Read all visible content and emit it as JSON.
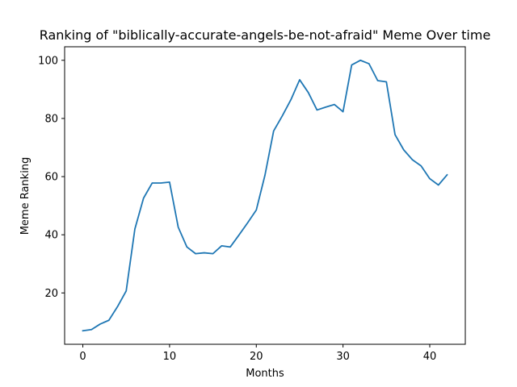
{
  "chart_data": {
    "type": "line",
    "title": "Ranking of \"biblically-accurate-angels-be-not-afraid\" Meme Over time",
    "xlabel": "Months",
    "ylabel": "Meme Ranking",
    "xlim": [
      -2.1,
      44.1
    ],
    "ylim": [
      2.35,
      104.65
    ],
    "xticks": [
      0,
      10,
      20,
      30,
      40
    ],
    "yticks": [
      20,
      40,
      60,
      80,
      100
    ],
    "grid": false,
    "color": "#1f77b4",
    "series": [
      {
        "x": [
          0,
          1,
          2,
          3,
          4,
          5,
          6,
          7,
          8,
          9,
          10,
          11,
          12,
          13,
          14,
          15,
          16,
          17,
          18,
          19,
          20,
          21,
          22,
          23,
          24,
          25,
          26,
          27,
          28,
          29,
          30,
          31,
          32,
          33,
          34,
          35,
          36,
          37,
          38,
          39,
          40,
          41,
          42
        ],
        "values": [
          7.0,
          7.4,
          9.3,
          10.6,
          15.3,
          20.7,
          42.0,
          52.6,
          57.8,
          57.8,
          58.1,
          42.6,
          35.8,
          33.5,
          33.8,
          33.5,
          36.2,
          35.8,
          39.9,
          44.1,
          48.5,
          60.5,
          75.7,
          80.9,
          86.5,
          93.3,
          88.9,
          82.9,
          83.9,
          84.8,
          82.3,
          98.4,
          100.0,
          98.8,
          93.0,
          92.6,
          74.4,
          69.2,
          65.8,
          63.7,
          59.3,
          57.1,
          60.6
        ]
      }
    ]
  }
}
